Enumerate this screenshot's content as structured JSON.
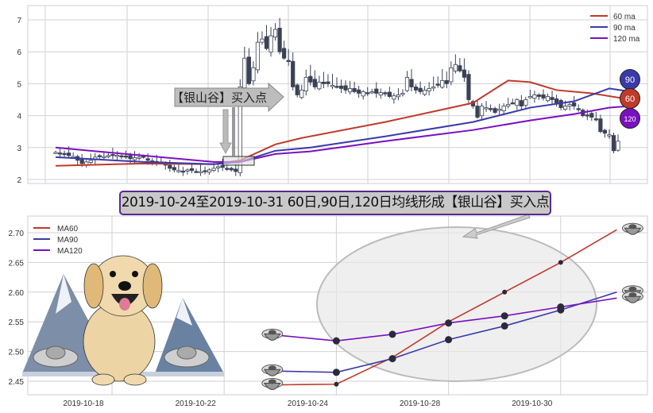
{
  "colors": {
    "ma60": "#c0392b",
    "ma90": "#3a3aaa",
    "ma120": "#7a10c0",
    "candle": "#3b4256",
    "grid": "#d0d0d8"
  },
  "chart_data": [
    {
      "type": "candlestick",
      "title": "",
      "ylim": [
        1.97,
        7.4
      ],
      "yticks": [
        "2",
        "3",
        "4",
        "5",
        "6",
        "7"
      ],
      "ytick_values": [
        2,
        3,
        4,
        5,
        6,
        7
      ],
      "close": [
        2.85,
        2.8,
        2.78,
        2.75,
        2.72,
        2.6,
        2.5,
        2.55,
        2.6,
        2.7,
        2.72,
        2.72,
        2.75,
        2.78,
        2.76,
        2.72,
        2.7,
        2.65,
        2.68,
        2.7,
        2.7,
        2.6,
        2.55,
        2.5,
        2.55,
        2.45,
        2.35,
        2.3,
        2.28,
        2.25,
        2.3,
        2.28,
        2.25,
        2.25,
        2.27,
        2.3,
        2.35,
        2.4,
        2.38,
        2.35,
        2.3,
        2.25,
        4.9,
        5.8,
        5.0,
        5.5,
        6.3,
        6.4,
        6.1,
        6.5,
        6.7,
        6.0,
        5.8,
        5.7,
        4.9,
        4.65,
        4.8,
        5.2,
        5.05,
        4.9,
        5.05,
        5.0,
        5.0,
        4.95,
        4.9,
        4.85,
        4.8,
        4.85,
        4.75,
        4.7,
        4.75,
        4.7,
        4.75,
        4.7,
        4.72,
        4.68,
        4.6,
        4.62,
        4.65,
        4.7,
        5.2,
        4.9,
        4.8,
        4.75,
        4.8,
        4.85,
        4.9,
        4.95,
        5.1,
        5.0,
        5.5,
        5.6,
        5.4,
        5.2,
        4.5,
        4.3,
        3.95,
        4.3,
        4.25,
        4.2,
        4.1,
        4.2,
        4.3,
        4.35,
        4.4,
        4.5,
        4.3,
        4.5,
        4.6,
        4.65,
        4.6,
        4.55,
        4.6,
        4.5,
        4.4,
        4.25,
        4.3,
        4.35,
        4.3,
        4.2,
        4.0,
        4.0,
        3.95,
        3.9,
        3.5,
        3.45,
        3.4,
        2.9,
        3.2
      ],
      "series": [
        {
          "name": "60 ma",
          "points": [
            [
              0,
              2.43
            ],
            [
              20,
              2.5
            ],
            [
              36,
              2.48
            ],
            [
              42,
              2.6
            ],
            [
              50,
              3.1
            ],
            [
              56,
              3.3
            ],
            [
              75,
              3.8
            ],
            [
              95,
              4.4
            ],
            [
              103,
              5.1
            ],
            [
              108,
              5.05
            ],
            [
              114,
              4.8
            ],
            [
              122,
              4.7
            ],
            [
              131,
              4.5
            ]
          ]
        },
        {
          "name": "90 ma",
          "points": [
            [
              0,
              2.7
            ],
            [
              20,
              2.55
            ],
            [
              36,
              2.48
            ],
            [
              42,
              2.55
            ],
            [
              50,
              2.9
            ],
            [
              58,
              3.0
            ],
            [
              75,
              3.35
            ],
            [
              95,
              3.8
            ],
            [
              108,
              4.25
            ],
            [
              118,
              4.45
            ],
            [
              126,
              4.85
            ],
            [
              131,
              4.75
            ]
          ]
        },
        {
          "name": "120 ma",
          "points": [
            [
              0,
              3.0
            ],
            [
              20,
              2.75
            ],
            [
              36,
              2.55
            ],
            [
              42,
              2.55
            ],
            [
              50,
              2.8
            ],
            [
              58,
              2.88
            ],
            [
              75,
              3.2
            ],
            [
              95,
              3.55
            ],
            [
              108,
              3.85
            ],
            [
              118,
              4.05
            ],
            [
              126,
              4.25
            ],
            [
              131,
              4.3
            ]
          ]
        }
      ],
      "legend": [
        "60 ma",
        "90 ma",
        "120 ma"
      ],
      "legend_position": "top-right",
      "annotation": "【银山谷】买入点",
      "badges": [
        "90",
        "60",
        "120"
      ]
    },
    {
      "type": "line",
      "title": "2019-10-24至2019-10-31 60日,90日,120日均线形成【银山谷】买入点",
      "x": [
        "2019-10-23",
        "2019-10-24",
        "2019-10-25",
        "2019-10-28",
        "2019-10-29",
        "2019-10-30",
        "2019-10-31"
      ],
      "x_index": [
        3,
        4,
        5,
        6,
        7,
        8,
        9
      ],
      "xticks": [
        "2019-10-18",
        "2019-10-22",
        "2019-10-24",
        "2019-10-28",
        "2019-10-30"
      ],
      "xtick_index": [
        0,
        2,
        4,
        6,
        8
      ],
      "yticks": [
        "2.45",
        "2.50",
        "2.55",
        "2.60",
        "2.65",
        "2.70"
      ],
      "ytick_values": [
        2.45,
        2.5,
        2.55,
        2.6,
        2.65,
        2.7
      ],
      "ylim": [
        2.43,
        2.72
      ],
      "series": [
        {
          "name": "MA60",
          "values": [
            2.444,
            2.445,
            2.49,
            2.55,
            2.6,
            2.65,
            2.705
          ]
        },
        {
          "name": "MA90",
          "values": [
            2.467,
            2.465,
            2.488,
            2.52,
            2.543,
            2.57,
            2.6
          ]
        },
        {
          "name": "MA120",
          "values": [
            2.527,
            2.518,
            2.529,
            2.548,
            2.56,
            2.575,
            2.59
          ]
        }
      ],
      "legend_position": "top-left"
    }
  ]
}
